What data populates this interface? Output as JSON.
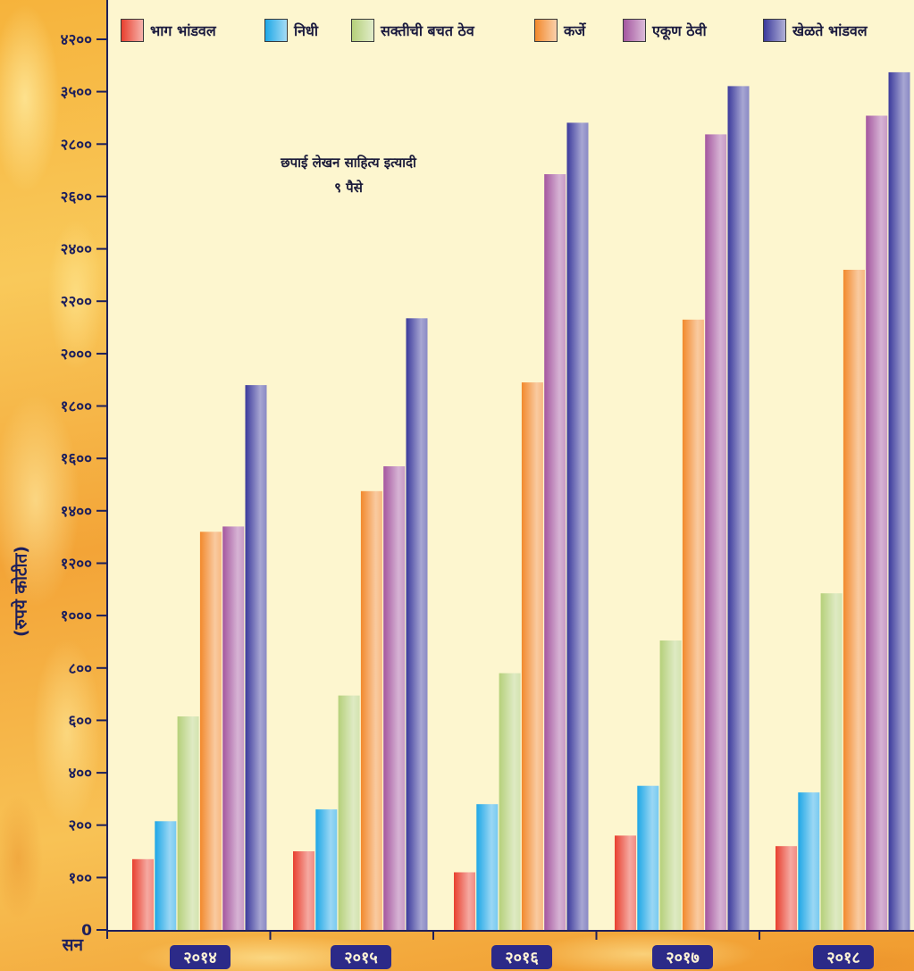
{
  "chart_data": {
    "type": "bar",
    "categories": [
      "२०१४",
      "२०१५",
      "२०१६",
      "२०१७",
      "२०१८"
    ],
    "series": [
      {
        "name": "भाग भांडवल",
        "color": "#e8402f",
        "values": [
          135,
          150,
          110,
          180,
          160
        ]
      },
      {
        "name": "निधी",
        "color": "#1ea7e6",
        "values": [
          215,
          260,
          280,
          350,
          325
        ]
      },
      {
        "name": "सक्तीची बचत ठेव",
        "color": "#b5d07a",
        "values": [
          615,
          695,
          780,
          905,
          1085
        ]
      },
      {
        "name": "कर्जे",
        "color": "#f2892c",
        "values": [
          1320,
          1475,
          1890,
          2130,
          2320
        ]
      },
      {
        "name": "एकूण ठेवी",
        "color": "#a4569f",
        "values": [
          1340,
          1570,
          2685,
          2930,
          3180
        ]
      },
      {
        "name": "खेळते भांडवल",
        "color": "#3b3a9c",
        "values": [
          1880,
          2135,
          3085,
          3575,
          3760
        ]
      }
    ],
    "xlabel": "सन",
    "ylabel": "(रुपये कोटीत)",
    "yticks": [
      0,
      100,
      200,
      400,
      600,
      800,
      1000,
      1200,
      1400,
      1600,
      1800,
      2000,
      2200,
      2400,
      2600,
      2800,
      3500,
      4200
    ],
    "ytick_labels": [
      "0",
      "१००",
      "२००",
      "४००",
      "६००",
      "८००",
      "१०००",
      "१२००",
      "१४००",
      "१६००",
      "१८००",
      "२०००",
      "२२००",
      "२४००",
      "२६००",
      "२८००",
      "३५००",
      "४२००"
    ],
    "ylim": [
      0,
      4200
    ],
    "annotations": [
      "छपाई लेखन साहित्य इत्यादी",
      "९ पैसे"
    ],
    "legend": "top",
    "grid": false
  },
  "colors": {
    "plot_background": "#fdf6cf",
    "axis": "#1d1f5c",
    "year_box": "#2c2a88"
  }
}
